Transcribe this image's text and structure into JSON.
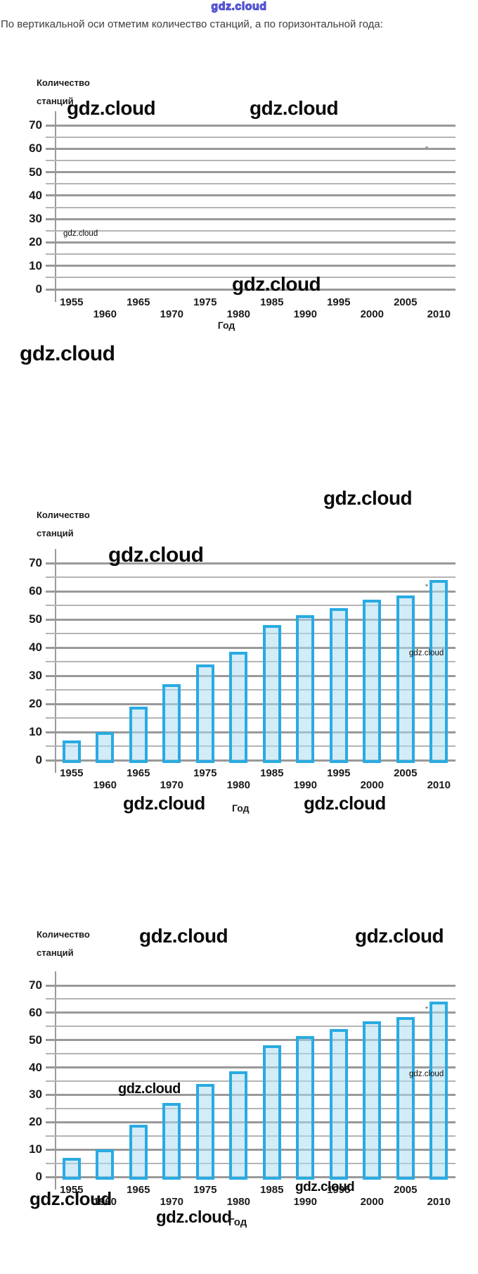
{
  "page": {
    "watermark_text": "gdz.cloud",
    "heading": "По вертикальной оси отметим количество станций, а по горизонтальной года:"
  },
  "axis": {
    "y_title_line1": "Количество",
    "y_title_line2": "станций",
    "x_title": "Год"
  },
  "colors": {
    "bar_border": "#29abe2",
    "bar_fill": "#d9eef9",
    "gridline_major": "#999999",
    "gridline_minor": "#b4b4b4",
    "top_watermark_blue": "#3a3ac8"
  },
  "chart_data": [
    {
      "type": "bar",
      "title": "",
      "categories": [
        "1955",
        "1960",
        "1965",
        "1970",
        "1975",
        "1980",
        "1985",
        "1990",
        "1995",
        "2000",
        "2005",
        "2010"
      ],
      "values": [],
      "xlabel": "Год",
      "ylabel": "Количество станций",
      "ylim": [
        0,
        70
      ],
      "y_tick_step": 10,
      "grid_step": 5,
      "grid": true,
      "legend": false,
      "note": "empty coordinate grid, no bars plotted yet"
    },
    {
      "type": "bar",
      "title": "",
      "categories": [
        "1955",
        "1960",
        "1965",
        "1970",
        "1975",
        "1980",
        "1985",
        "1990",
        "1995",
        "2000",
        "2005",
        "2010"
      ],
      "values": [
        7,
        10,
        19,
        27,
        34,
        38.5,
        48,
        51.5,
        54,
        57,
        58.5,
        64
      ],
      "xlabel": "Год",
      "ylabel": "Количество станций",
      "ylim": [
        0,
        70
      ],
      "y_tick_step": 10,
      "grid_step": 5,
      "grid": true,
      "legend": false
    },
    {
      "type": "bar",
      "title": "",
      "categories": [
        "1955",
        "1960",
        "1965",
        "1970",
        "1975",
        "1980",
        "1985",
        "1990",
        "1995",
        "2000",
        "2005",
        "2010"
      ],
      "values": [
        7,
        10,
        19,
        27,
        34,
        38.5,
        48,
        51.5,
        54,
        57,
        58.5,
        64
      ],
      "xlabel": "Год",
      "ylabel": "Количество станций",
      "ylim": [
        0,
        70
      ],
      "y_tick_step": 10,
      "grid_step": 5,
      "grid": true,
      "legend": false
    }
  ]
}
